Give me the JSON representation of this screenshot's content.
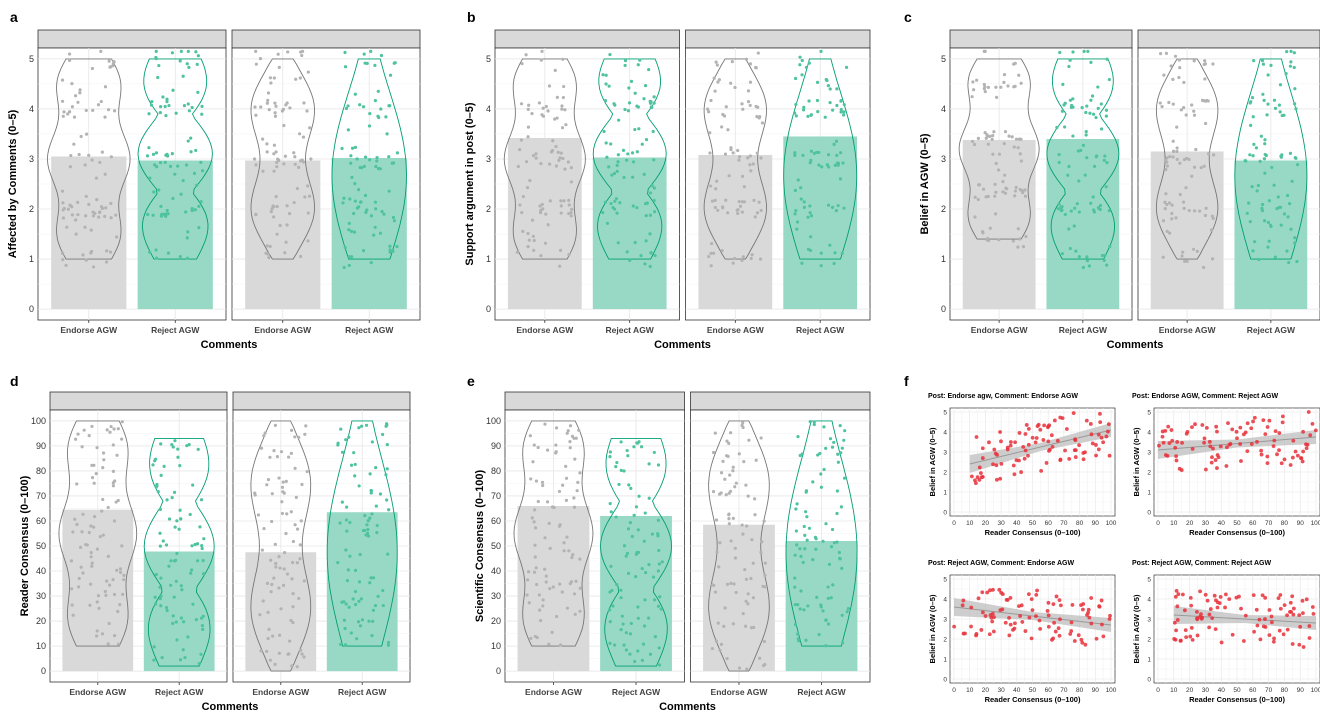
{
  "colors": {
    "grey": "#bdbdbd",
    "grey_bar": "#d9d9d9",
    "green": "#009e73",
    "green_bar": "#98d9c5",
    "strip": "#d9d9d9",
    "red": "#e8303a",
    "band": "#bdbdbd"
  },
  "chart_data": [
    {
      "type": "bar",
      "panel_letter": "a",
      "xlabel": "Comments",
      "ylabel": "Affected by Comments (0–5)",
      "categories": [
        "Endorse AGW",
        "Reject AGW"
      ],
      "ylim": [
        0,
        5
      ],
      "yticks": [
        "0",
        "1",
        "2",
        "3",
        "4",
        "5"
      ],
      "facets": [
        {
          "strip": "",
          "values": [
            3.05,
            2.97
          ]
        },
        {
          "strip": "",
          "values": [
            2.97,
            3.02
          ]
        }
      ]
    },
    {
      "type": "bar",
      "panel_letter": "b",
      "xlabel": "Comments",
      "ylabel": "Support argument in post (0–5)",
      "categories": [
        "Endorse AGW",
        "Reject AGW"
      ],
      "ylim": [
        0,
        5
      ],
      "yticks": [
        "0",
        "1",
        "2",
        "3",
        "4",
        "5"
      ],
      "facets": [
        {
          "strip": "",
          "values": [
            3.42,
            3.03
          ]
        },
        {
          "strip": "",
          "values": [
            3.08,
            3.45
          ]
        }
      ]
    },
    {
      "type": "bar",
      "panel_letter": "c",
      "xlabel": "Comments",
      "ylabel": "Belief in AGW (0–5)",
      "categories": [
        "Endorse AGW",
        "Reject AGW"
      ],
      "ylim": [
        0,
        5
      ],
      "yticks": [
        "0",
        "1",
        "2",
        "3",
        "4",
        "5"
      ],
      "facets": [
        {
          "strip": "",
          "values": [
            3.38,
            3.4
          ]
        },
        {
          "strip": "",
          "values": [
            3.15,
            2.97
          ]
        }
      ]
    },
    {
      "type": "bar",
      "panel_letter": "d",
      "xlabel": "Comments",
      "ylabel": "Reader Consensus (0–100)",
      "categories": [
        "Endorse AGW",
        "Reject AGW"
      ],
      "ylim": [
        0,
        100
      ],
      "yticks": [
        "0",
        "10",
        "20",
        "30",
        "40",
        "50",
        "60",
        "70",
        "80",
        "90",
        "100"
      ],
      "facets": [
        {
          "strip": "",
          "values": [
            64.5,
            47.8
          ]
        },
        {
          "strip": "",
          "values": [
            47.5,
            63.5
          ]
        }
      ]
    },
    {
      "type": "bar",
      "panel_letter": "e",
      "xlabel": "Comments",
      "ylabel": "Scientific Consensus (0–100)",
      "categories": [
        "Endorse AGW",
        "Reject AGW"
      ],
      "ylim": [
        0,
        100
      ],
      "yticks": [
        "0",
        "10",
        "20",
        "30",
        "40",
        "50",
        "60",
        "70",
        "80",
        "90",
        "100"
      ],
      "facets": [
        {
          "strip": "",
          "values": [
            66,
            62
          ]
        },
        {
          "strip": "",
          "values": [
            58.5,
            52
          ]
        }
      ]
    },
    {
      "type": "scatter",
      "panel_letter": "f",
      "xlabel": "Reader Consensus (0–100)",
      "ylabel": "Belief in AGW (0–5)",
      "xlim": [
        0,
        100
      ],
      "ylim": [
        0,
        5
      ],
      "xticks": [
        "0",
        "10",
        "20",
        "30",
        "40",
        "50",
        "60",
        "70",
        "80",
        "90",
        "100"
      ],
      "yticks": [
        "0",
        "1",
        "2",
        "3",
        "4",
        "5"
      ],
      "subplots": [
        {
          "title": "Post: Endorse agw, Comment: Endorse AGW",
          "fit": [
            2.4,
            4.1
          ],
          "fit_x": [
            10,
            100
          ]
        },
        {
          "title": "Post: Endorse AGW, Comment: Reject AGW",
          "fit": [
            3.1,
            3.75
          ],
          "fit_x": [
            0,
            100
          ]
        },
        {
          "title": "Post: Reject AGW, Comment: Endorse AGW",
          "fit": [
            3.6,
            2.7
          ],
          "fit_x": [
            0,
            100
          ]
        },
        {
          "title": "Post: Reject AGW, Comment: Reject AGW",
          "fit": [
            3.2,
            2.8
          ],
          "fit_x": [
            10,
            100
          ]
        }
      ]
    }
  ]
}
